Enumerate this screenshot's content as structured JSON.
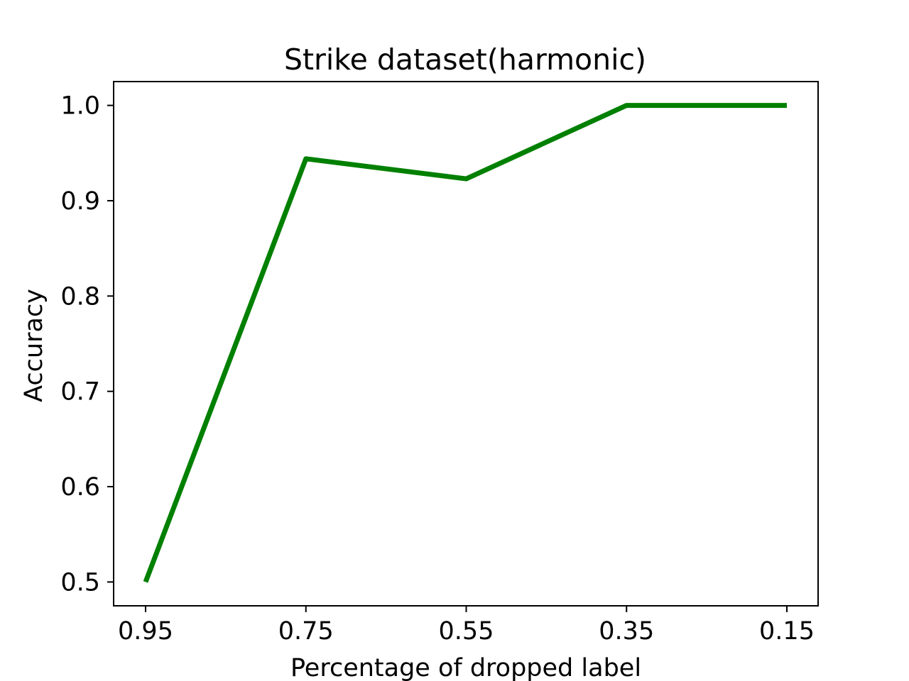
{
  "chart_data": {
    "type": "line",
    "title": "Strike dataset(harmonic)",
    "xlabel": "Percentage of dropped label",
    "ylabel": "Accuracy",
    "categories": [
      "0.95",
      "0.75",
      "0.55",
      "0.35",
      "0.15"
    ],
    "series": [
      {
        "values": [
          0.5,
          0.944,
          0.923,
          1.0,
          1.0
        ],
        "color": "#008000"
      }
    ],
    "yticks": [
      "0.5",
      "0.6",
      "0.7",
      "0.8",
      "0.9",
      "1.0"
    ],
    "ylim": [
      0.475,
      1.025
    ],
    "grid": false
  }
}
